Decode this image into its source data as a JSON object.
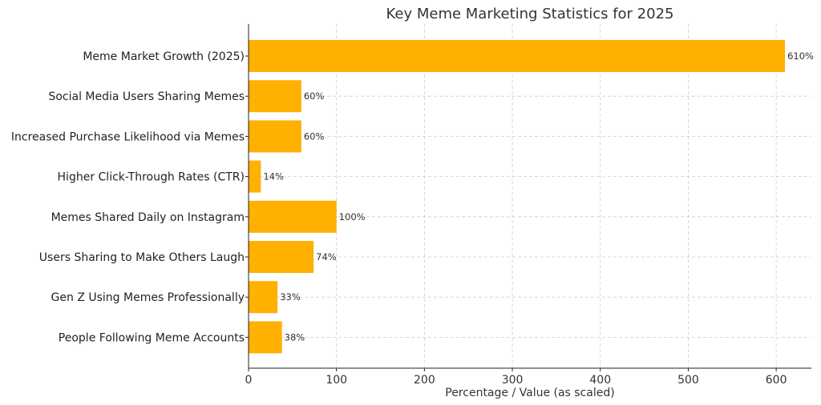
{
  "chart_data": {
    "type": "bar",
    "orientation": "horizontal",
    "title": "Key Meme Marketing Statistics for 2025",
    "xlabel": "Percentage / Value (as scaled)",
    "ylabel": "",
    "xlim": [
      0,
      640
    ],
    "xticks": [
      0,
      100,
      200,
      300,
      400,
      500,
      600
    ],
    "grid": true,
    "bar_color": "#FFB000",
    "categories": [
      "Meme Market Growth (2025)",
      "Social Media Users Sharing Memes",
      "Increased Purchase Likelihood via Memes",
      "Higher Click-Through Rates (CTR)",
      "Memes Shared Daily on Instagram",
      "Users Sharing to Make Others Laugh",
      "Gen Z Using Memes Professionally",
      "People Following Meme Accounts"
    ],
    "values": [
      610,
      60,
      60,
      14,
      100,
      74,
      33,
      38
    ],
    "data_labels": [
      "610%",
      "60%",
      "60%",
      "14%",
      "100%",
      "74%",
      "33%",
      "38%"
    ]
  }
}
